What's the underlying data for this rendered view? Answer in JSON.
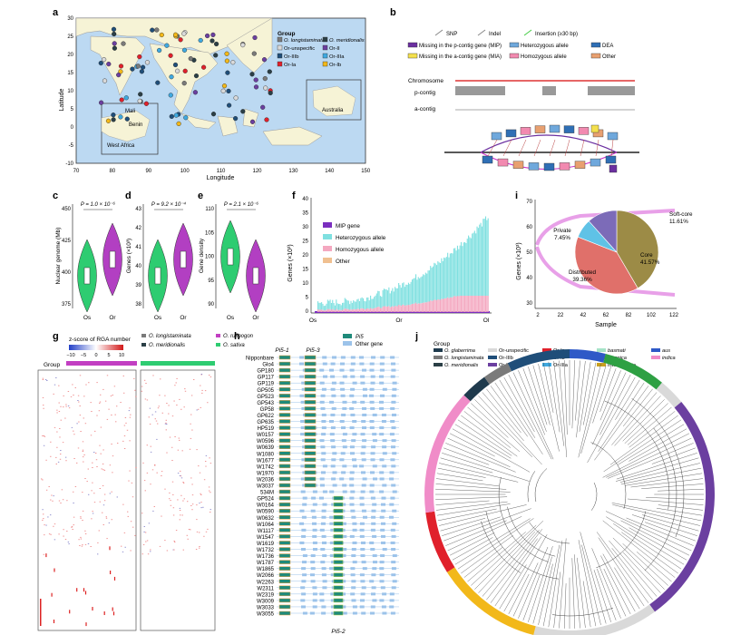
{
  "panel_letters": {
    "a": "a",
    "b": "b",
    "c": "c",
    "d": "d",
    "e": "e",
    "f": "f",
    "g": "g",
    "h": "h",
    "i": "i",
    "j": "j"
  },
  "a": {
    "ylabel": "Latitude",
    "xlabel": "Longitude",
    "xticks": [
      "70",
      "80",
      "90",
      "100",
      "110",
      "120",
      "130",
      "140",
      "150"
    ],
    "yticks": [
      "30",
      "25",
      "20",
      "15",
      "10",
      "5",
      "0",
      "-5",
      "-10"
    ],
    "legend_title": "Group",
    "legend": [
      {
        "label": "O. longistaminata",
        "color": "#7a7a7a"
      },
      {
        "label": "O. meridionalis",
        "color": "#2b3f46"
      },
      {
        "label": "Or-unspecific",
        "color": "#d9d9d9"
      },
      {
        "label": "Or-II",
        "color": "#6b3fa0"
      },
      {
        "label": "Or-IIIb",
        "color": "#1f4e79"
      },
      {
        "label": "Or-IIIa",
        "color": "#3fa9e0"
      },
      {
        "label": "Or-Ia",
        "color": "#e0202b"
      },
      {
        "label": "Or-Ib",
        "color": "#f2b81a"
      }
    ],
    "inset_africa": {
      "label": "West Africa",
      "places": [
        "Mali",
        "Benin"
      ],
      "yticks": [
        "30",
        "20",
        "10",
        "0"
      ],
      "xticks": [
        "-20",
        "0",
        "20"
      ]
    },
    "inset_australia": {
      "label": "Australia",
      "yticks": [
        "-20",
        "-40"
      ],
      "xticks": [
        "125",
        "150"
      ]
    }
  },
  "b": {
    "legend": [
      {
        "label": "SNP"
      },
      {
        "label": "Indel"
      },
      {
        "label": "Insertion (≥30 bp)"
      },
      {
        "label": "Missing in the p-contig gene (MIP)",
        "color": "#6b2fa0"
      },
      {
        "label": "Heterozygous allele",
        "color": "#6fa8dc"
      },
      {
        "label": "DEA",
        "color": "#2f6fb5"
      },
      {
        "label": "Missing in the a-contig gene (MIA)",
        "color": "#f4e04d"
      },
      {
        "label": "Homozygous allele",
        "color": "#f28ab0"
      },
      {
        "label": "Other",
        "color": "#e8a070"
      }
    ],
    "tracks": [
      "Chromosome",
      "p-contig",
      "a-contig"
    ]
  },
  "c": {
    "ylabel": "Nuclear genome (Mb)",
    "p": "P = 1.0 × 10⁻⁶",
    "yticks": [
      "450",
      "425",
      "400",
      "375"
    ],
    "groups": [
      "Os",
      "Or"
    ]
  },
  "d": {
    "ylabel": "Genes (×10³)",
    "p": "P = 9.2 × 10⁻⁴",
    "yticks": [
      "43",
      "42",
      "41",
      "40",
      "39",
      "38"
    ],
    "groups": [
      "Os",
      "Or"
    ]
  },
  "e": {
    "ylabel": "Gene density",
    "p": "P = 2.1 × 10⁻⁶",
    "yticks": [
      "110",
      "105",
      "100",
      "95",
      "90"
    ],
    "groups": [
      "Os",
      "Or"
    ]
  },
  "f": {
    "ylabel": "Genes (×10³)",
    "yticks": [
      "40",
      "35",
      "30",
      "25",
      "20",
      "15",
      "10",
      "5",
      "0"
    ],
    "xticks": [
      "Os",
      "Or",
      "Ol"
    ],
    "legend": [
      {
        "label": "MIP gene",
        "color": "#7b2fbf"
      },
      {
        "label": "Heterozygous allele",
        "color": "#7fe0e0"
      },
      {
        "label": "Homozygous allele",
        "color": "#f4a8c0"
      },
      {
        "label": "Other",
        "color": "#f0c090"
      }
    ]
  },
  "i": {
    "ylabel": "Genes (×10³)",
    "xlabel": "Sample",
    "yticks": [
      "70",
      "60",
      "50",
      "40",
      "30"
    ],
    "xticks": [
      "2",
      "22",
      "42",
      "62",
      "82",
      "102",
      "122"
    ],
    "pie": [
      {
        "label": "Core",
        "value": 41.57,
        "pct": "41.57%",
        "color": "#9c8b46"
      },
      {
        "label": "Distributed",
        "value": 39.36,
        "pct": "39.36%",
        "color": "#e0706a"
      },
      {
        "label": "Private",
        "value": 7.45,
        "pct": "7.45%",
        "color": "#5fc2e6"
      },
      {
        "label": "Soft-core",
        "value": 11.61,
        "pct": "11.61%",
        "color": "#7c6bb8"
      }
    ]
  },
  "g": {
    "scale_title": "z-score of RGA number",
    "scale_ticks": [
      "−10",
      "−5",
      "0",
      "5",
      "10"
    ],
    "legend": [
      {
        "label": "O. longistaminata",
        "color": "#7a7a7a"
      },
      {
        "label": "O. rufipogon",
        "color": "#c23fc2"
      },
      {
        "label": "O. meridionalis",
        "color": "#2b3f46"
      },
      {
        "label": "O. sativa",
        "color": "#2ecc71"
      }
    ],
    "group_label": "Group"
  },
  "h": {
    "legend": [
      {
        "label": "Pi5",
        "color": "#1f8a7a"
      },
      {
        "label": "Other gene",
        "color": "#9cc3ea"
      }
    ],
    "gene_labels": [
      "Pi5-1",
      "Pi5-3",
      "Pi5-2"
    ],
    "samples": [
      "Nipponbare",
      "Glo4",
      "GP180",
      "GP117",
      "GP119",
      "GP505",
      "GP523",
      "GP543",
      "GP58",
      "GP622",
      "GP635",
      "HP519",
      "W0157",
      "W0596",
      "W0639",
      "W1080",
      "W1677",
      "W1742",
      "W1970",
      "W2036",
      "W3037",
      "534M",
      "GP524",
      "W0164",
      "W0590",
      "W0632",
      "W1064",
      "W1117",
      "W1547",
      "W1619",
      "W1732",
      "W1736",
      "W1787",
      "W1865",
      "W2066",
      "W2263",
      "W2311",
      "W2319",
      "W3009",
      "W3033",
      "W3055"
    ]
  },
  "j": {
    "legend_title": "Group",
    "legend": [
      {
        "label": "O. glaberrima",
        "color": "#1f3a4d"
      },
      {
        "label": "Or-unspecific",
        "color": "#d9d9d9"
      },
      {
        "label": "Or-Ia",
        "color": "#e0202b"
      },
      {
        "label": "basmati",
        "color": "#a6e3c7"
      },
      {
        "label": "aus",
        "color": "#2e59c7"
      },
      {
        "label": "O. longistaminata",
        "color": "#7a7a7a"
      },
      {
        "label": "Or-IIIb",
        "color": "#1f4e79"
      },
      {
        "label": "Or-Ib",
        "color": "#f2b81a"
      },
      {
        "label": "japonica",
        "color": "#2ea043"
      },
      {
        "label": "indica",
        "color": "#f08cc8"
      },
      {
        "label": "O. meridionalis",
        "color": "#2b3f46"
      },
      {
        "label": "Or-II",
        "color": "#6b3fa0"
      },
      {
        "label": "Or-IIIa",
        "color": "#3fa9e0"
      },
      {
        "label": "Intermediate",
        "color": "#c8a020"
      }
    ]
  }
}
